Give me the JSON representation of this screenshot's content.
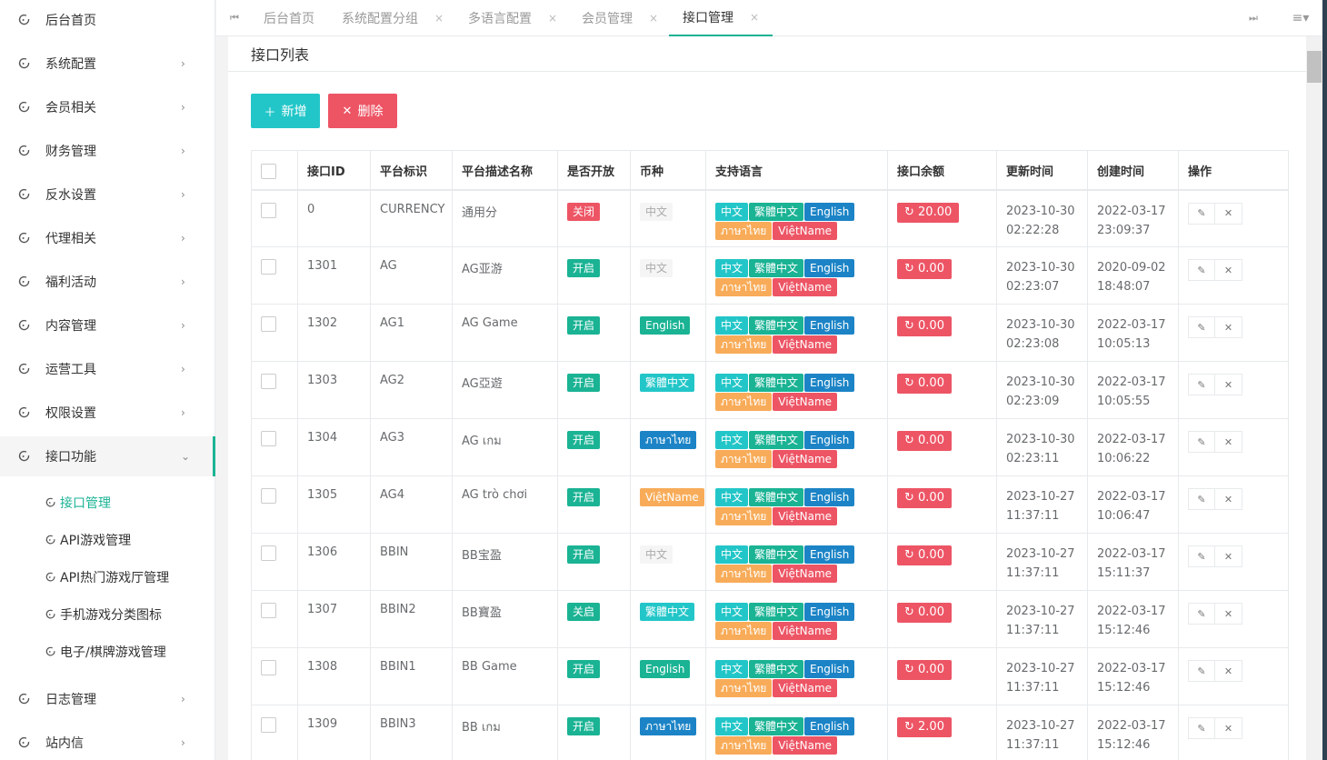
{
  "sidebar": {
    "items": [
      {
        "label": "后台首页",
        "chev": false
      },
      {
        "label": "系统配置",
        "chev": true
      },
      {
        "label": "会员相关",
        "chev": true
      },
      {
        "label": "财务管理",
        "chev": true
      },
      {
        "label": "反水设置",
        "chev": true
      },
      {
        "label": "代理相关",
        "chev": true
      },
      {
        "label": "福利活动",
        "chev": true
      },
      {
        "label": "内容管理",
        "chev": true
      },
      {
        "label": "运营工具",
        "chev": true
      },
      {
        "label": "权限设置",
        "chev": true
      },
      {
        "label": "接口功能",
        "chev": true,
        "expanded": true
      }
    ],
    "subitems": [
      "接口管理",
      "API游戏管理",
      "API热门游戏厅管理",
      "手机游戏分类图标",
      "电子/棋牌游戏管理"
    ],
    "bottom_items": [
      {
        "label": "日志管理"
      },
      {
        "label": "站内信"
      }
    ]
  },
  "tabs": [
    {
      "label": "后台首页"
    },
    {
      "label": "系统配置分组"
    },
    {
      "label": "多语言配置"
    },
    {
      "label": "会员管理"
    },
    {
      "label": "接口管理",
      "active": true
    }
  ],
  "panel": {
    "title": "接口列表",
    "add_label": "新增",
    "delete_label": "删除"
  },
  "table": {
    "headers": [
      "接口ID",
      "平台标识",
      "平台描述名称",
      "是否开放",
      "币种",
      "支持语言",
      "接口余额",
      "更新时间",
      "创建时间",
      "操作"
    ],
    "languages": [
      "中文",
      "繁體中文",
      "English",
      "ภาษาไทย",
      "ViệtName"
    ],
    "rows": [
      {
        "id": "0",
        "code": "CURRENCY",
        "name": "通用分",
        "status": "关闭",
        "status_color": "#ed5565",
        "currency": "中文",
        "currency_style": "grey",
        "balance": "20.00",
        "updated_date": "2023-10-30",
        "updated_time": "02:22:28",
        "created_date": "2022-03-17",
        "created_time": "23:09:37"
      },
      {
        "id": "1301",
        "code": "AG",
        "name": "AG亚游",
        "status": "开启",
        "status_color": "#1ab394",
        "currency": "中文",
        "currency_style": "grey",
        "balance": "0.00",
        "updated_date": "2023-10-30",
        "updated_time": "02:23:07",
        "created_date": "2020-09-02",
        "created_time": "18:48:07"
      },
      {
        "id": "1302",
        "code": "AG1",
        "name": "AG Game",
        "status": "开启",
        "status_color": "#1ab394",
        "currency": "English",
        "currency_style": "g",
        "balance": "0.00",
        "updated_date": "2023-10-30",
        "updated_time": "02:23:08",
        "created_date": "2022-03-17",
        "created_time": "10:05:13"
      },
      {
        "id": "1303",
        "code": "AG2",
        "name": "AG亞遊",
        "status": "开启",
        "status_color": "#1ab394",
        "currency": "繁體中文",
        "currency_style": "t",
        "balance": "0.00",
        "updated_date": "2023-10-30",
        "updated_time": "02:23:09",
        "created_date": "2022-03-17",
        "created_time": "10:05:55"
      },
      {
        "id": "1304",
        "code": "AG3",
        "name": "AG เกม",
        "status": "开启",
        "status_color": "#1ab394",
        "currency": "ภาษาไทย",
        "currency_style": "b",
        "balance": "0.00",
        "updated_date": "2023-10-30",
        "updated_time": "02:23:11",
        "created_date": "2022-03-17",
        "created_time": "10:06:22"
      },
      {
        "id": "1305",
        "code": "AG4",
        "name": "AG trò chơi",
        "status": "开启",
        "status_color": "#1ab394",
        "currency": "ViệtName",
        "currency_style": "o",
        "balance": "0.00",
        "updated_date": "2023-10-27",
        "updated_time": "11:37:11",
        "created_date": "2022-03-17",
        "created_time": "10:06:47"
      },
      {
        "id": "1306",
        "code": "BBIN",
        "name": "BB宝盈",
        "status": "开启",
        "status_color": "#1ab394",
        "currency": "中文",
        "currency_style": "grey",
        "balance": "0.00",
        "updated_date": "2023-10-27",
        "updated_time": "11:37:11",
        "created_date": "2022-03-17",
        "created_time": "15:11:37"
      },
      {
        "id": "1307",
        "code": "BBIN2",
        "name": "BB寶盈",
        "status": "关启",
        "status_color": "#1ab394",
        "currency": "繁體中文",
        "currency_style": "t",
        "balance": "0.00",
        "updated_date": "2023-10-27",
        "updated_time": "11:37:11",
        "created_date": "2022-03-17",
        "created_time": "15:12:46"
      },
      {
        "id": "1308",
        "code": "BBIN1",
        "name": "BB Game",
        "status": "开启",
        "status_color": "#1ab394",
        "currency": "English",
        "currency_style": "g",
        "balance": "0.00",
        "updated_date": "2023-10-27",
        "updated_time": "11:37:11",
        "created_date": "2022-03-17",
        "created_time": "15:12:46"
      },
      {
        "id": "1309",
        "code": "BBIN3",
        "name": "BB เกม",
        "status": "开启",
        "status_color": "#1ab394",
        "currency": "ภาษาไทย",
        "currency_style": "b",
        "balance": "2.00",
        "updated_date": "2023-10-27",
        "updated_time": "11:37:11",
        "created_date": "2022-03-17",
        "created_time": "15:12:46"
      }
    ]
  }
}
